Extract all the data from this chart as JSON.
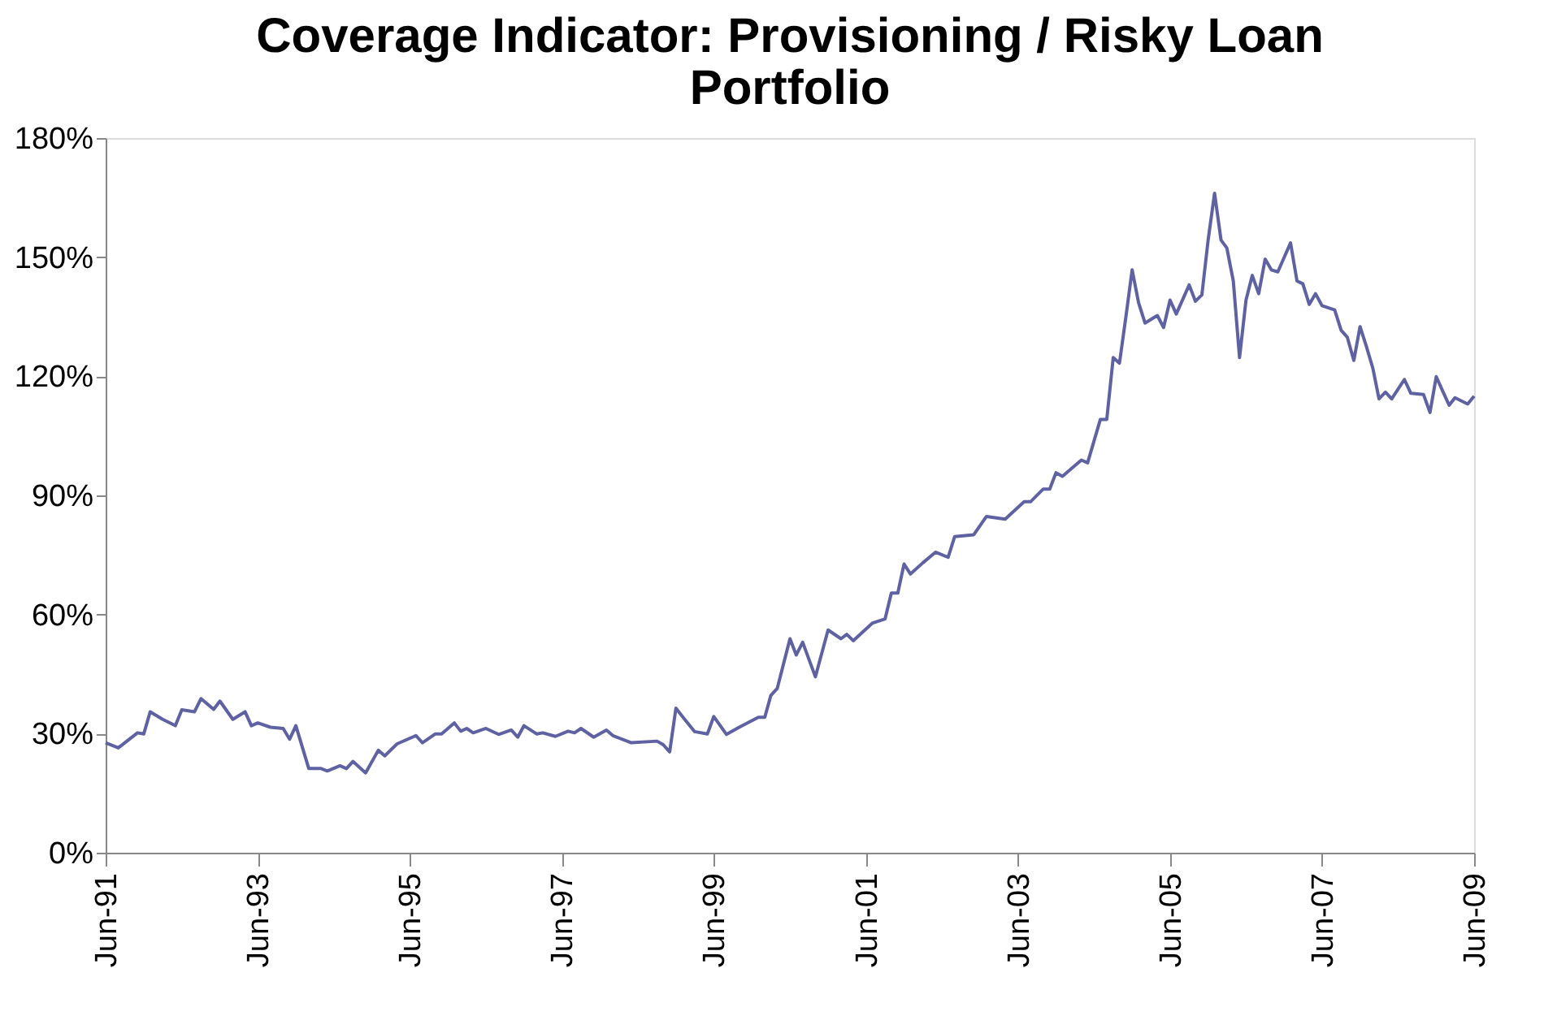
{
  "chart_data": {
    "type": "line",
    "title": "Coverage Indicator: Provisioning / Risky Loan Portfolio",
    "x": [
      "1991-06",
      "1991-08",
      "1991-11",
      "1991-12",
      "1992-01",
      "1992-03",
      "1992-05",
      "1992-06",
      "1992-08",
      "1992-09",
      "1992-11",
      "1992-12",
      "1993-02",
      "1993-04",
      "1993-05",
      "1993-06",
      "1993-08",
      "1993-10",
      "1993-11",
      "1993-12",
      "1994-02",
      "1994-04",
      "1994-05",
      "1994-07",
      "1994-08",
      "1994-09",
      "1994-11",
      "1995-01",
      "1995-02",
      "1995-04",
      "1995-07",
      "1995-08",
      "1995-10",
      "1995-11",
      "1996-01",
      "1996-02",
      "1996-03",
      "1996-04",
      "1996-06",
      "1996-08",
      "1996-10",
      "1996-11",
      "1996-12",
      "1997-02",
      "1997-03",
      "1997-05",
      "1997-07",
      "1997-08",
      "1997-09",
      "1997-11",
      "1998-01",
      "1998-02",
      "1998-05",
      "1998-09",
      "1998-10",
      "1998-11",
      "1998-12",
      "1999-01",
      "1999-03",
      "1999-05",
      "1999-06",
      "1999-08",
      "1999-10",
      "2000-01",
      "2000-02",
      "2000-03",
      "2000-04",
      "2000-06",
      "2000-07",
      "2000-08",
      "2000-10",
      "2000-12",
      "2001-02",
      "2001-03",
      "2001-04",
      "2001-07",
      "2001-09",
      "2001-10",
      "2001-11",
      "2001-12",
      "2002-01",
      "2002-03",
      "2002-05",
      "2002-07",
      "2002-08",
      "2002-11",
      "2003-01",
      "2003-04",
      "2003-07",
      "2003-08",
      "2003-10",
      "2003-11",
      "2003-12",
      "2004-01",
      "2004-04",
      "2004-05",
      "2004-07",
      "2004-08",
      "2004-09",
      "2004-10",
      "2004-11",
      "2004-12",
      "2005-01",
      "2005-02",
      "2005-04",
      "2005-05",
      "2005-06",
      "2005-07",
      "2005-09",
      "2005-10",
      "2005-11",
      "2005-12",
      "2006-01",
      "2006-02",
      "2006-03",
      "2006-04",
      "2006-05",
      "2006-06",
      "2006-07",
      "2006-08",
      "2006-09",
      "2006-10",
      "2006-11",
      "2007-01",
      "2007-02",
      "2007-03",
      "2007-04",
      "2007-05",
      "2007-06",
      "2007-08",
      "2007-09",
      "2007-10",
      "2007-11",
      "2007-12",
      "2008-01",
      "2008-02",
      "2008-03",
      "2008-04",
      "2008-05",
      "2008-07",
      "2008-08",
      "2008-10",
      "2008-11",
      "2008-12",
      "2009-02",
      "2009-03",
      "2009-05",
      "2009-06"
    ],
    "series": [
      {
        "color": "#5f62a2",
        "values": [
          27.7,
          26.4,
          30.2,
          29.9,
          35.5,
          33.6,
          32,
          36,
          35.5,
          38.8,
          36.1,
          38.2,
          33.6,
          35.5,
          32,
          32.7,
          31.6,
          31.3,
          28.6,
          32,
          21.2,
          21.2,
          20.6,
          21.9,
          21.2,
          23,
          20.1,
          25.8,
          24.4,
          27.4,
          29.5,
          27.7,
          29.9,
          29.9,
          32.7,
          30.6,
          31.3,
          30.2,
          31.3,
          29.8,
          30.9,
          29.1,
          32,
          29.9,
          30.2,
          29.3,
          30.6,
          30.2,
          31.3,
          29.1,
          30.9,
          29.5,
          27.7,
          28.1,
          27.2,
          25.4,
          36.4,
          34.3,
          30.5,
          29.9,
          34.3,
          29.8,
          31.6,
          34.1,
          34.1,
          39.6,
          41.4,
          53.9,
          49.8,
          53,
          44.3,
          56.1,
          53.9,
          55,
          53.4,
          57.8,
          58.9,
          65.4,
          65.4,
          72.7,
          70.2,
          73,
          75.7,
          74.4,
          79.6,
          80.1,
          84.7,
          84,
          88.4,
          88.4,
          91.6,
          91.6,
          95.7,
          94.8,
          98.9,
          98.2,
          109.1,
          109.1,
          124.7,
          123.3,
          135,
          146.8,
          138.5,
          133.4,
          135.3,
          132.3,
          139.2,
          135.7,
          143,
          138.9,
          140.5,
          154.3,
          166.1,
          154.3,
          152.3,
          144,
          124.7,
          139.2,
          145.4,
          140.8,
          149.5,
          146.8,
          146.3,
          153.6,
          144,
          143.3,
          138.1,
          140.8,
          137.8,
          136.7,
          131.6,
          129.8,
          124,
          132.5,
          127.4,
          121.9,
          114.3,
          116,
          114.3,
          119.2,
          115.7,
          115.4,
          110.9,
          119.9,
          112.7,
          114.6,
          113,
          115
        ]
      }
    ],
    "xlim": [
      "1991-06",
      "2009-06"
    ],
    "xticks": [
      {
        "value": "1991-06",
        "label": "Jun-91"
      },
      {
        "value": "1993-06",
        "label": "Jun-93"
      },
      {
        "value": "1995-06",
        "label": "Jun-95"
      },
      {
        "value": "1997-06",
        "label": "Jun-97"
      },
      {
        "value": "1999-06",
        "label": "Jun-99"
      },
      {
        "value": "2001-06",
        "label": "Jun-01"
      },
      {
        "value": "2003-06",
        "label": "Jun-03"
      },
      {
        "value": "2005-06",
        "label": "Jun-05"
      },
      {
        "value": "2007-06",
        "label": "Jun-07"
      },
      {
        "value": "2009-06",
        "label": "Jun-09"
      }
    ],
    "ylim": [
      0,
      180
    ],
    "yticks": [
      {
        "value": 0,
        "label": "0%"
      },
      {
        "value": 30,
        "label": "30%"
      },
      {
        "value": 60,
        "label": "60%"
      },
      {
        "value": 90,
        "label": "90%"
      },
      {
        "value": 120,
        "label": "120%"
      },
      {
        "value": 150,
        "label": "150%"
      },
      {
        "value": 180,
        "label": "180%"
      }
    ],
    "grid": false,
    "marker": "none",
    "line_style": "solid"
  }
}
